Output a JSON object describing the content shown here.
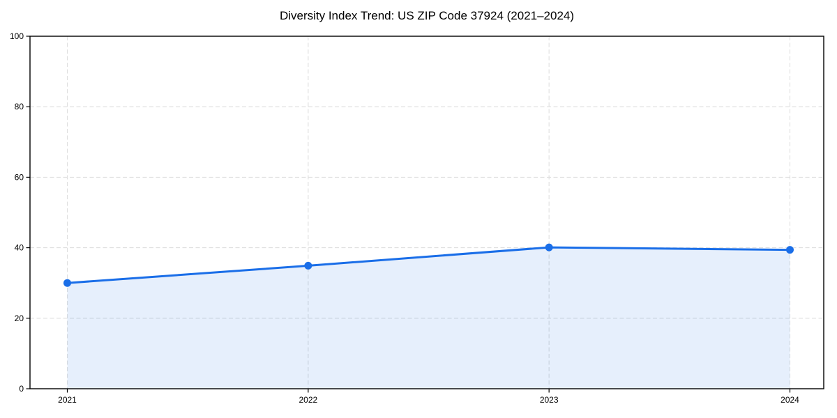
{
  "chart_data": {
    "type": "area",
    "title": "Diversity Index Trend: US ZIP Code 37924 (2021–2024)",
    "categories": [
      "2021",
      "2022",
      "2023",
      "2024"
    ],
    "values": [
      30.0,
      34.9,
      40.1,
      39.4
    ],
    "xlabel": "",
    "ylabel": "",
    "ylim": [
      0,
      100
    ],
    "yticks": [
      0,
      20,
      40,
      60,
      80,
      100
    ],
    "grid": true,
    "legend": false,
    "colors": {
      "line": "#1a6ee8",
      "fill": "rgba(26,110,232,0.11)",
      "grid": "#dedede",
      "spine": "#000000",
      "text": "#000000"
    }
  }
}
